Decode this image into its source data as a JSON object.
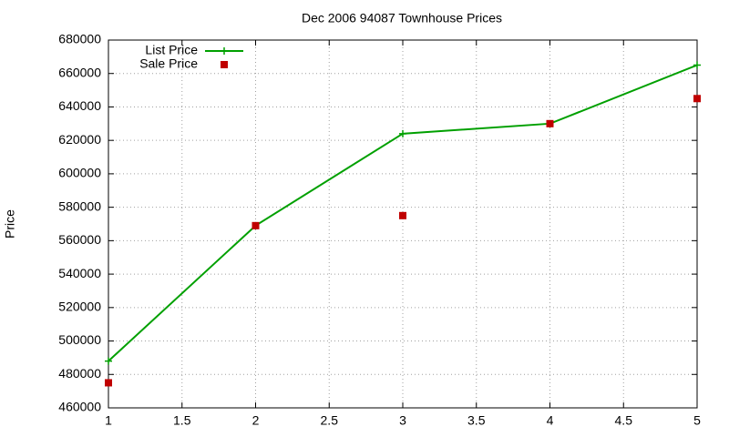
{
  "chart_data": {
    "type": "line",
    "title": "Dec 2006 94087 Townhouse Prices",
    "y_label": "Price",
    "x": [
      1,
      2,
      3,
      4,
      5
    ],
    "series": [
      {
        "name": "List Price",
        "color": "#00a000",
        "marker": "plus",
        "lines": true,
        "values": [
          488000,
          569000,
          624000,
          630000,
          665000
        ]
      },
      {
        "name": "Sale Price",
        "color": "#c00000",
        "marker": "square",
        "lines": false,
        "values": [
          475000,
          569000,
          575000,
          630000,
          645000
        ]
      }
    ],
    "xlim": [
      1,
      5
    ],
    "xticks": [
      1,
      1.5,
      2,
      2.5,
      3,
      3.5,
      4,
      4.5,
      5
    ],
    "ylim": [
      460000,
      680000
    ],
    "yticks": [
      460000,
      480000,
      500000,
      520000,
      540000,
      560000,
      580000,
      600000,
      620000,
      640000,
      660000,
      680000
    ],
    "grid": true,
    "legend": "top-left"
  }
}
